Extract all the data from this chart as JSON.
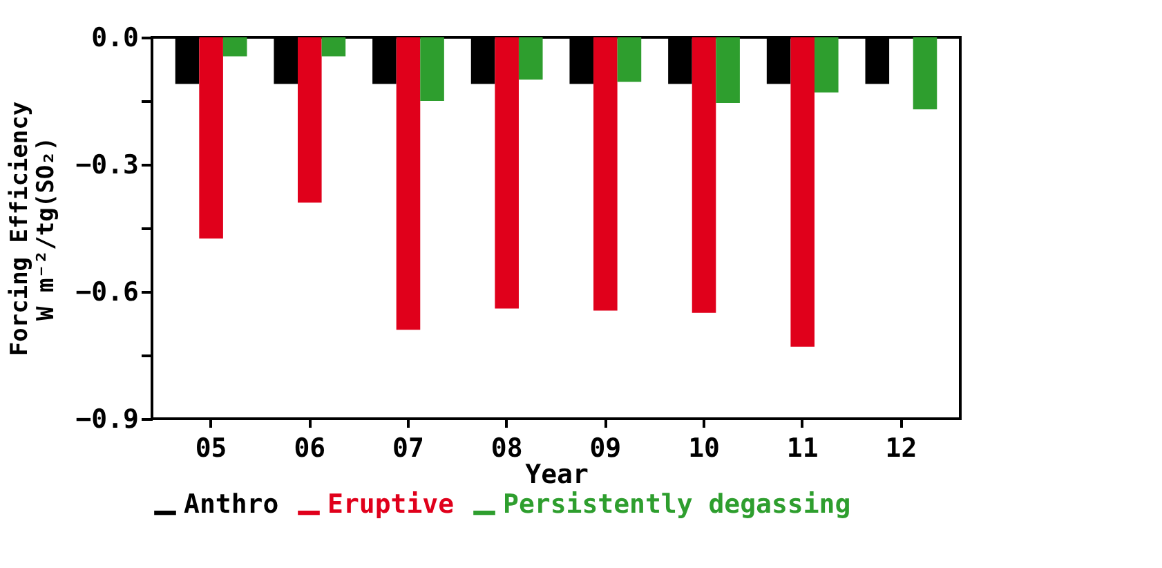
{
  "chart_data": {
    "type": "bar",
    "xlabel": "Year",
    "ylabel": "Forcing Efficiency\nW m⁻²/tg(SO₂)",
    "categories": [
      "05",
      "06",
      "07",
      "08",
      "09",
      "10",
      "11",
      "12"
    ],
    "series": [
      {
        "name": "Anthro",
        "color": "#000000",
        "values": [
          -0.11,
          -0.11,
          -0.11,
          -0.11,
          -0.11,
          -0.11,
          -0.11,
          -0.11
        ]
      },
      {
        "name": "Eruptive",
        "color": "#e0001b",
        "values": [
          -0.475,
          -0.39,
          -0.69,
          -0.64,
          -0.645,
          -0.65,
          -0.73,
          null
        ]
      },
      {
        "name": "Persistently degassing",
        "color": "#2e9e2e",
        "values": [
          -0.045,
          -0.045,
          -0.15,
          -0.1,
          -0.105,
          -0.155,
          -0.13,
          -0.17
        ]
      }
    ],
    "ylim": [
      -0.9,
      0
    ],
    "yticks": [
      {
        "value": -0.9,
        "label": "−0.9"
      },
      {
        "value": -0.75,
        "label": null
      },
      {
        "value": -0.6,
        "label": "−0.6"
      },
      {
        "value": -0.45,
        "label": null
      },
      {
        "value": -0.3,
        "label": "−0.3"
      },
      {
        "value": -0.15,
        "label": null
      },
      {
        "value": 0,
        "label": "0.0"
      }
    ],
    "legend": "bottom",
    "grid": false
  }
}
